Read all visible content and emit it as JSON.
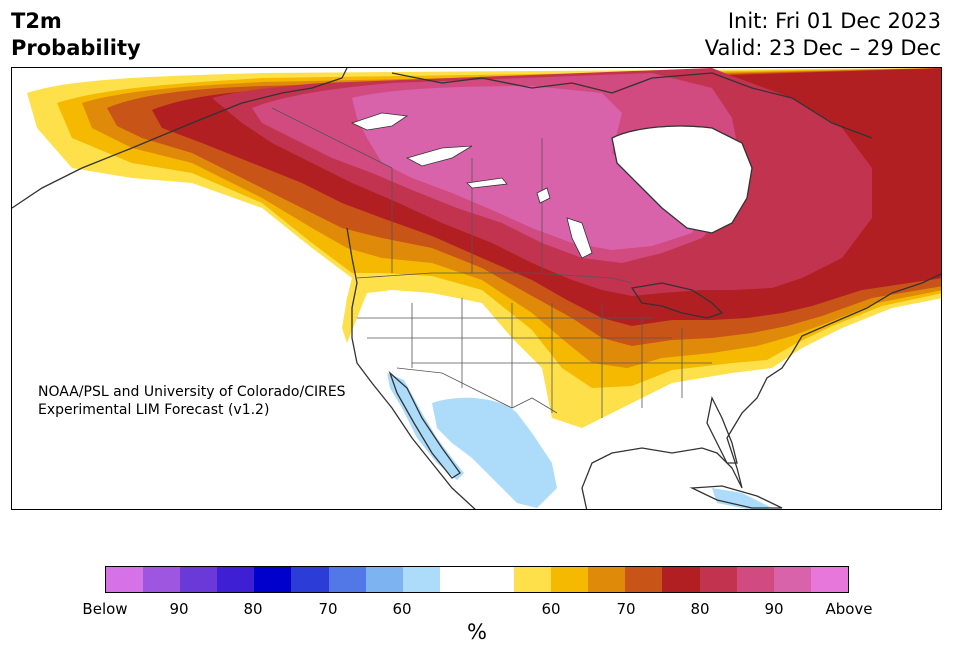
{
  "header": {
    "variable": "T2m",
    "metric": "Probability",
    "init": "Init: Fri 01 Dec 2023",
    "valid": "Valid: 23 Dec – 29 Dec"
  },
  "credit": {
    "line1": "NOAA/PSL and University of Colorado/CIRES",
    "line2": "Experimental LIM Forecast (v1.2)"
  },
  "colorbar": {
    "unit": "%",
    "ticks": [
      "Below",
      "90",
      "80",
      "70",
      "60",
      "60",
      "70",
      "80",
      "90",
      "Above"
    ],
    "colors": [
      "#d672e8",
      "#9e55e0",
      "#6a39d8",
      "#3f1fd4",
      "#0000cc",
      "#2b3dd6",
      "#5277e6",
      "#7eb3f2",
      "#acdcfa",
      "#ffffff",
      "#ffffff",
      "#fde04a",
      "#f4b900",
      "#e08a0a",
      "#c85418",
      "#b11f22",
      "#c23350",
      "#d14a80",
      "#d963ab",
      "#e877db"
    ]
  },
  "map": {
    "above_colors": [
      "#fde04a",
      "#f4b900",
      "#e08a0a",
      "#c85418",
      "#b11f22",
      "#c23350",
      "#d14a80",
      "#d963ab"
    ],
    "below_color": "#acdcfa",
    "land_color": "#ffffff",
    "coast_color": "#333333"
  }
}
